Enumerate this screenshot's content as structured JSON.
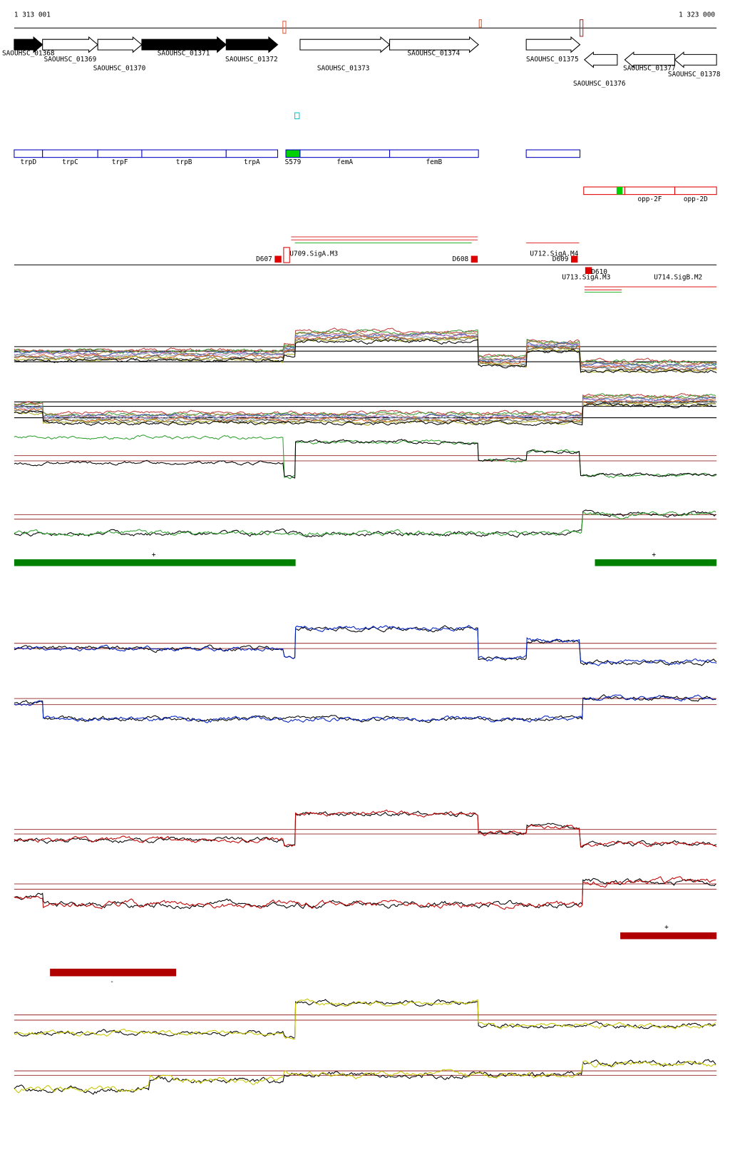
{
  "ruler": {
    "start": "1 313 001",
    "end": "1 323 000"
  },
  "genes": [
    "SAOUHSC_01368",
    "SAOUHSC_01369",
    "SAOUHSC_01370",
    "SAOUHSC_01371",
    "SAOUHSC_01372",
    "SAOUHSC_01373",
    "SAOUHSC_01374",
    "SAOUHSC_01375",
    "SAOUHSC_01376",
    "SAOUHSC_01377",
    "SAOUHSC_01378"
  ],
  "operons": [
    "trpD",
    "trpC",
    "trpF",
    "trpB",
    "trpA",
    "S579",
    "femA",
    "femB"
  ],
  "operons2": [
    "opp-2F",
    "opp-2D"
  ],
  "regulatory": [
    "D607",
    "U709.SigA.M3",
    "D608",
    "U712.SigA.M4",
    "D609",
    "D610",
    "U713.SigA.M3",
    "U714.SigB.M2"
  ],
  "signs": [
    "+",
    "+",
    "+",
    "-"
  ]
}
